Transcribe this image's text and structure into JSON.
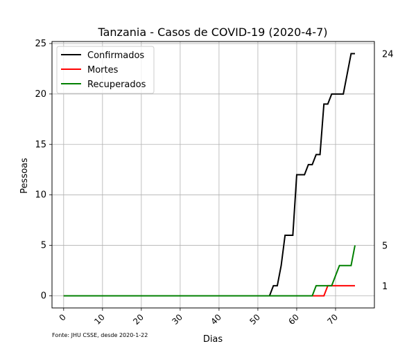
{
  "chart_data": {
    "type": "line",
    "title": "Tanzania - Casos de COVID-19 (2020-4-7)",
    "xlabel": "Dias",
    "ylabel": "Pessoas",
    "xlim": [
      -3,
      80
    ],
    "ylim": [
      -1.2,
      25.2
    ],
    "xticks": [
      0,
      10,
      20,
      30,
      40,
      50,
      60,
      70
    ],
    "yticks": [
      0,
      5,
      10,
      15,
      20,
      25
    ],
    "grid": true,
    "legend_position": "upper-left",
    "footnote": "Fonte: JHU CSSE, desde 2020-1-22",
    "series": [
      {
        "name": "Confirmados",
        "color": "#000000",
        "points": [
          [
            0,
            0
          ],
          [
            53,
            0
          ],
          [
            54,
            1
          ],
          [
            55,
            1
          ],
          [
            56,
            3
          ],
          [
            57,
            6
          ],
          [
            58,
            6
          ],
          [
            59,
            6
          ],
          [
            60,
            12
          ],
          [
            61,
            12
          ],
          [
            62,
            12
          ],
          [
            63,
            13
          ],
          [
            64,
            13
          ],
          [
            65,
            14
          ],
          [
            66,
            14
          ],
          [
            67,
            19
          ],
          [
            68,
            19
          ],
          [
            69,
            20
          ],
          [
            70,
            20
          ],
          [
            71,
            20
          ],
          [
            72,
            20
          ],
          [
            73,
            22
          ],
          [
            74,
            24
          ],
          [
            75,
            24
          ]
        ],
        "end_label": "24"
      },
      {
        "name": "Mortes",
        "color": "#ff0000",
        "points": [
          [
            0,
            0
          ],
          [
            67,
            0
          ],
          [
            68,
            1
          ],
          [
            75,
            1
          ]
        ],
        "end_label": "1"
      },
      {
        "name": "Recuperados",
        "color": "#008000",
        "points": [
          [
            0,
            0
          ],
          [
            64,
            0
          ],
          [
            65,
            1
          ],
          [
            69,
            1
          ],
          [
            71,
            3
          ],
          [
            74,
            3
          ],
          [
            75,
            5
          ]
        ],
        "end_label": "5"
      }
    ]
  }
}
